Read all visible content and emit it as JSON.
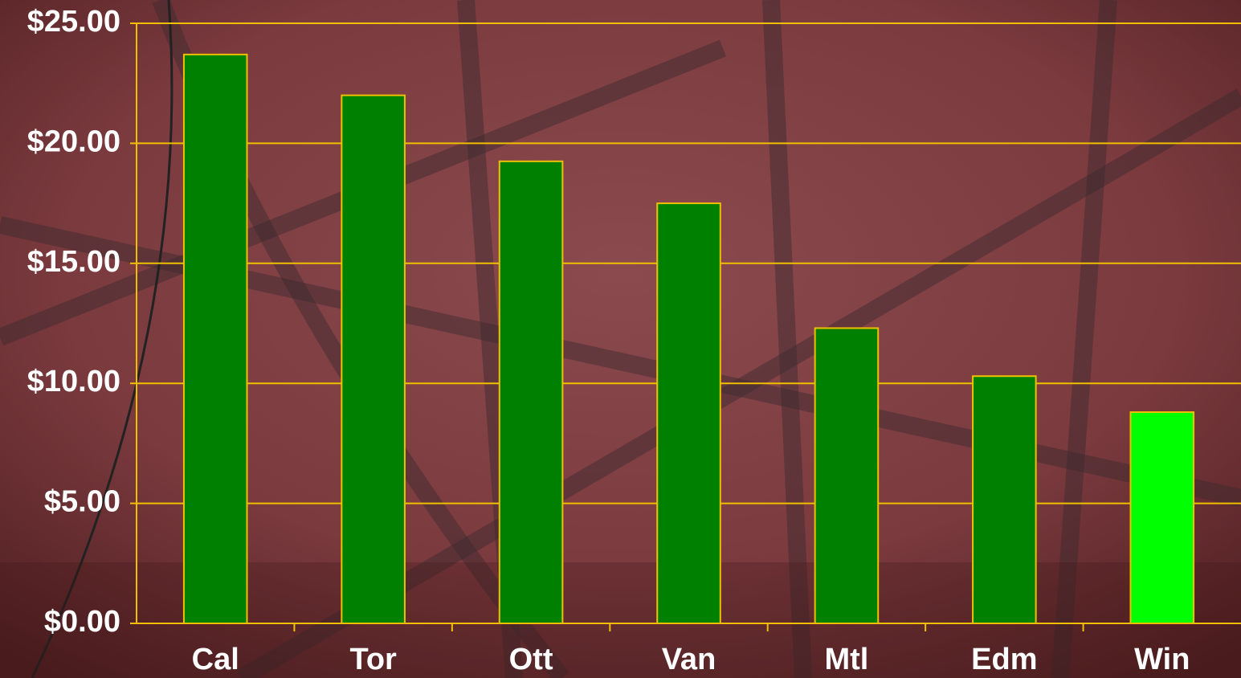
{
  "chart_data": {
    "type": "bar",
    "categories": [
      "Cal",
      "Tor",
      "Ott",
      "Van",
      "Mtl",
      "Edm",
      "Win"
    ],
    "values": [
      23.7,
      22.0,
      19.25,
      17.5,
      12.3,
      10.3,
      8.8
    ],
    "colors": [
      "#008000",
      "#008000",
      "#008000",
      "#008000",
      "#008000",
      "#008000",
      "#00ff00"
    ],
    "ylim": [
      0,
      25
    ],
    "yticks": [
      {
        "value": 0,
        "label": "$0.00"
      },
      {
        "value": 5,
        "label": "$5.00"
      },
      {
        "value": 10,
        "label": "$10.00"
      },
      {
        "value": 15,
        "label": "$15.00"
      },
      {
        "value": 20,
        "label": "$20.00"
      },
      {
        "value": 25,
        "label": "$25.00"
      }
    ],
    "grid": true
  }
}
